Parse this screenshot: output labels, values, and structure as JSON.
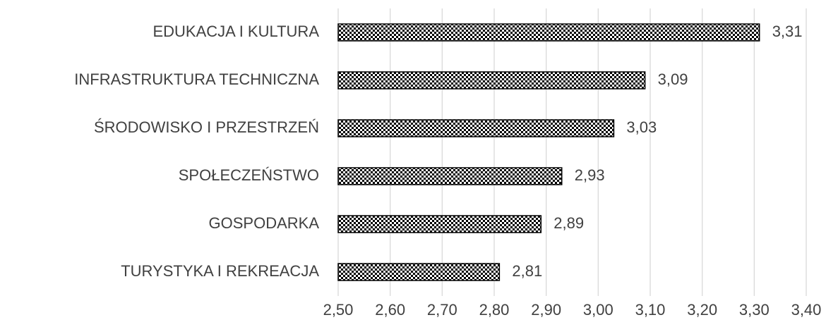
{
  "chart_data": {
    "type": "barh",
    "categories": [
      "EDUKACJA I KULTURA",
      "INFRASTRUKTURA TECHNICZNA",
      "ŚRODOWISKO I PRZESTRZEŃ",
      "SPOŁECZEŃSTWO",
      "GOSPODARKA",
      "TURYSTYKA I REKREACJA"
    ],
    "values": [
      3.31,
      3.09,
      3.03,
      2.93,
      2.89,
      2.81
    ],
    "value_labels": [
      "3,31",
      "3,09",
      "3,03",
      "2,93",
      "2,89",
      "2,81"
    ],
    "color": "#000000",
    "xlim": [
      2.5,
      3.4
    ],
    "xticks": [
      {
        "value": 2.5,
        "label": "2,50"
      },
      {
        "value": 2.6,
        "label": "2,60"
      },
      {
        "value": 2.7,
        "label": "2,70"
      },
      {
        "value": 2.8,
        "label": "2,80"
      },
      {
        "value": 2.9,
        "label": "2,90"
      },
      {
        "value": 3.0,
        "label": "3,00"
      },
      {
        "value": 3.1,
        "label": "3,10"
      },
      {
        "value": 3.2,
        "label": "3,20"
      },
      {
        "value": 3.3,
        "label": "3,30"
      },
      {
        "value": 3.4,
        "label": "3,40"
      }
    ],
    "grid": true
  }
}
